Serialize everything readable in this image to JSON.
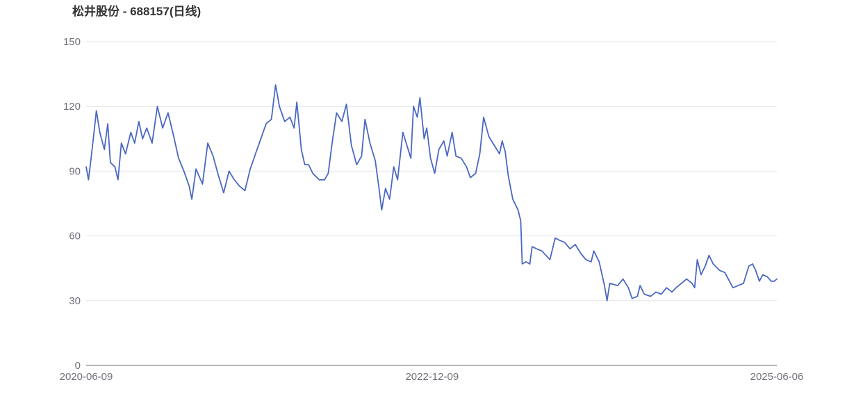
{
  "colors": {
    "line": "#4a67c2",
    "grid": "#e3e6ee",
    "axis": "#6e7079",
    "text": "#6e7079",
    "title": "#333333"
  },
  "chart_data": {
    "type": "line",
    "title": "松井股份 - 688157(日线)",
    "xlabel": "",
    "ylabel": "",
    "ylim": [
      0,
      150
    ],
    "y_ticks": [
      "0",
      "30",
      "60",
      "90",
      "120",
      "150"
    ],
    "x_range": [
      "2020-06-09",
      "2025-06-06"
    ],
    "x_ticks": [
      "2020-06-09",
      "2022-12-09",
      "2025-06-06"
    ],
    "grid": true,
    "legend": "none",
    "series": [
      {
        "values": [
          [
            "2020-06-09",
            92
          ],
          [
            "2020-06-15",
            86
          ],
          [
            "2020-06-22",
            96
          ],
          [
            "2020-07-01",
            110
          ],
          [
            "2020-07-06",
            118
          ],
          [
            "2020-07-15",
            108
          ],
          [
            "2020-07-27",
            100
          ],
          [
            "2020-08-05",
            112
          ],
          [
            "2020-08-12",
            94
          ],
          [
            "2020-08-24",
            92
          ],
          [
            "2020-09-01",
            86
          ],
          [
            "2020-09-10",
            103
          ],
          [
            "2020-09-21",
            98
          ],
          [
            "2020-10-05",
            108
          ],
          [
            "2020-10-15",
            103
          ],
          [
            "2020-10-26",
            113
          ],
          [
            "2020-11-05",
            105
          ],
          [
            "2020-11-16",
            110
          ],
          [
            "2020-11-30",
            103
          ],
          [
            "2020-12-14",
            120
          ],
          [
            "2020-12-28",
            110
          ],
          [
            "2021-01-11",
            117
          ],
          [
            "2021-01-25",
            107
          ],
          [
            "2021-02-08",
            96
          ],
          [
            "2021-02-22",
            90
          ],
          [
            "2021-03-08",
            83
          ],
          [
            "2021-03-15",
            77
          ],
          [
            "2021-03-26",
            91
          ],
          [
            "2021-04-12",
            84
          ],
          [
            "2021-04-26",
            103
          ],
          [
            "2021-05-10",
            97
          ],
          [
            "2021-05-24",
            88
          ],
          [
            "2021-06-07",
            80
          ],
          [
            "2021-06-21",
            90
          ],
          [
            "2021-07-05",
            86
          ],
          [
            "2021-07-19",
            83
          ],
          [
            "2021-08-02",
            81
          ],
          [
            "2021-08-16",
            91
          ],
          [
            "2021-08-30",
            98
          ],
          [
            "2021-09-13",
            105
          ],
          [
            "2021-09-27",
            112
          ],
          [
            "2021-10-11",
            114
          ],
          [
            "2021-10-22",
            130
          ],
          [
            "2021-11-01",
            120
          ],
          [
            "2021-11-15",
            113
          ],
          [
            "2021-11-29",
            115
          ],
          [
            "2021-12-10",
            110
          ],
          [
            "2021-12-17",
            122
          ],
          [
            "2021-12-29",
            100
          ],
          [
            "2022-01-07",
            93
          ],
          [
            "2022-01-17",
            93
          ],
          [
            "2022-01-28",
            89
          ],
          [
            "2022-02-14",
            86
          ],
          [
            "2022-02-28",
            86
          ],
          [
            "2022-03-10",
            89
          ],
          [
            "2022-03-21",
            104
          ],
          [
            "2022-04-01",
            117
          ],
          [
            "2022-04-15",
            113
          ],
          [
            "2022-04-27",
            121
          ],
          [
            "2022-05-10",
            102
          ],
          [
            "2022-05-24",
            93
          ],
          [
            "2022-06-06",
            97
          ],
          [
            "2022-06-15",
            114
          ],
          [
            "2022-06-28",
            103
          ],
          [
            "2022-07-12",
            95
          ],
          [
            "2022-07-22",
            82
          ],
          [
            "2022-07-29",
            72
          ],
          [
            "2022-08-08",
            82
          ],
          [
            "2022-08-19",
            77
          ],
          [
            "2022-08-30",
            92
          ],
          [
            "2022-09-09",
            86
          ],
          [
            "2022-09-23",
            108
          ],
          [
            "2022-10-14",
            96
          ],
          [
            "2022-10-21",
            120
          ],
          [
            "2022-10-31",
            115
          ],
          [
            "2022-11-07",
            124
          ],
          [
            "2022-11-18",
            105
          ],
          [
            "2022-11-25",
            110
          ],
          [
            "2022-12-05",
            96
          ],
          [
            "2022-12-16",
            89
          ],
          [
            "2022-12-27",
            100
          ],
          [
            "2023-01-09",
            104
          ],
          [
            "2023-01-18",
            97
          ],
          [
            "2023-01-31",
            108
          ],
          [
            "2023-02-10",
            97
          ],
          [
            "2023-02-24",
            96
          ],
          [
            "2023-03-10",
            92
          ],
          [
            "2023-03-20",
            87
          ],
          [
            "2023-04-03",
            89
          ],
          [
            "2023-04-14",
            98
          ],
          [
            "2023-04-24",
            115
          ],
          [
            "2023-05-08",
            106
          ],
          [
            "2023-05-22",
            102
          ],
          [
            "2023-06-05",
            98
          ],
          [
            "2023-06-12",
            104
          ],
          [
            "2023-06-20",
            99
          ],
          [
            "2023-06-28",
            88
          ],
          [
            "2023-07-10",
            77
          ],
          [
            "2023-07-24",
            72
          ],
          [
            "2023-07-31",
            67
          ],
          [
            "2023-08-04",
            47
          ],
          [
            "2023-08-14",
            48
          ],
          [
            "2023-08-24",
            47
          ],
          [
            "2023-08-30",
            55
          ],
          [
            "2023-09-11",
            54
          ],
          [
            "2023-09-25",
            53
          ],
          [
            "2023-10-16",
            49
          ],
          [
            "2023-10-30",
            59
          ],
          [
            "2023-11-10",
            58
          ],
          [
            "2023-11-24",
            57
          ],
          [
            "2023-12-08",
            54
          ],
          [
            "2023-12-22",
            56
          ],
          [
            "2024-01-05",
            52
          ],
          [
            "2024-01-19",
            49
          ],
          [
            "2024-02-02",
            48
          ],
          [
            "2024-02-09",
            53
          ],
          [
            "2024-02-23",
            48
          ],
          [
            "2024-03-08",
            37
          ],
          [
            "2024-03-15",
            30
          ],
          [
            "2024-03-22",
            38
          ],
          [
            "2024-04-12",
            37
          ],
          [
            "2024-04-26",
            40
          ],
          [
            "2024-05-10",
            36
          ],
          [
            "2024-05-20",
            31
          ],
          [
            "2024-06-03",
            32
          ],
          [
            "2024-06-10",
            37
          ],
          [
            "2024-06-21",
            33
          ],
          [
            "2024-07-08",
            32
          ],
          [
            "2024-07-22",
            34
          ],
          [
            "2024-08-05",
            33
          ],
          [
            "2024-08-19",
            36
          ],
          [
            "2024-09-02",
            34
          ],
          [
            "2024-09-13",
            36
          ],
          [
            "2024-09-27",
            38
          ],
          [
            "2024-10-11",
            40
          ],
          [
            "2024-10-25",
            38
          ],
          [
            "2024-11-01",
            36
          ],
          [
            "2024-11-08",
            49
          ],
          [
            "2024-11-18",
            42
          ],
          [
            "2024-11-29",
            46
          ],
          [
            "2024-12-09",
            51
          ],
          [
            "2024-12-20",
            47
          ],
          [
            "2025-01-06",
            44
          ],
          [
            "2025-01-20",
            43
          ],
          [
            "2025-02-10",
            36
          ],
          [
            "2025-02-24",
            37
          ],
          [
            "2025-03-10",
            38
          ],
          [
            "2025-03-24",
            46
          ],
          [
            "2025-04-03",
            47
          ],
          [
            "2025-04-11",
            44
          ],
          [
            "2025-04-21",
            39
          ],
          [
            "2025-04-30",
            42
          ],
          [
            "2025-05-12",
            41
          ],
          [
            "2025-05-22",
            39
          ],
          [
            "2025-05-30",
            39
          ],
          [
            "2025-06-06",
            40
          ]
        ]
      }
    ]
  }
}
